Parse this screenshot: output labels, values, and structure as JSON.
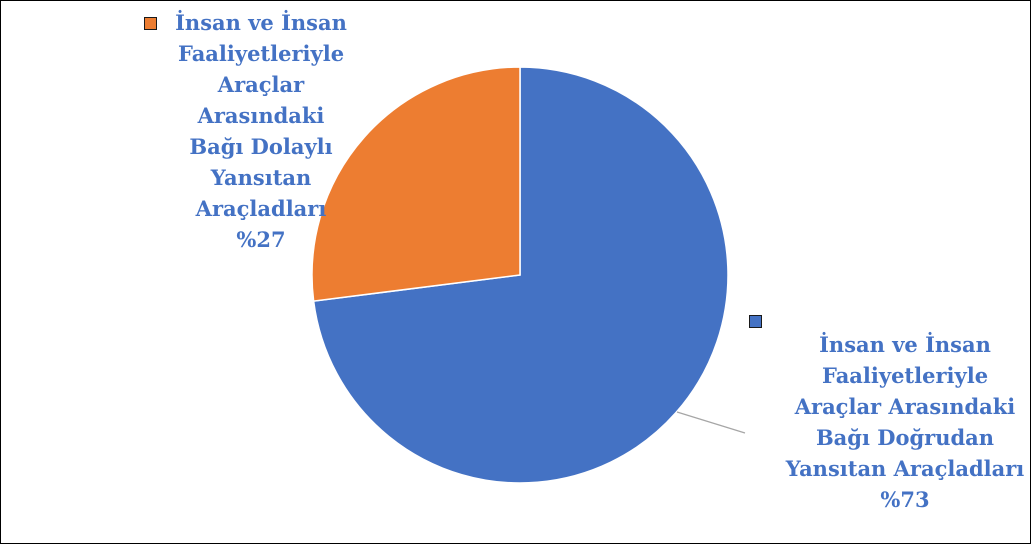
{
  "chart_data": {
    "type": "pie",
    "slices": [
      {
        "label": "İnsan ve İnsan\nFaaliyetleriyle\nAraçlar Arasındaki\nBağı Doğrudan\nYansıtan Araçladları\n%73",
        "percent_text": "%73",
        "value": 73,
        "color": "#4472C4",
        "label_color": "#4472C4"
      },
      {
        "label": "İnsan ve İnsan\nFaaliyetleriyle\nAraçlar\nArasındaki\nBağı Dolaylı\nYansıtan\nAraçladları\n%27",
        "percent_text": "%27",
        "value": 27,
        "color": "#ED7D31",
        "label_color": "#4472C4"
      }
    ],
    "start_angle_deg": 0,
    "direction": "clockwise",
    "slice_border_color": "#ffffff",
    "leader_line_color": "#a6a6a6",
    "legend": "with data labels"
  }
}
